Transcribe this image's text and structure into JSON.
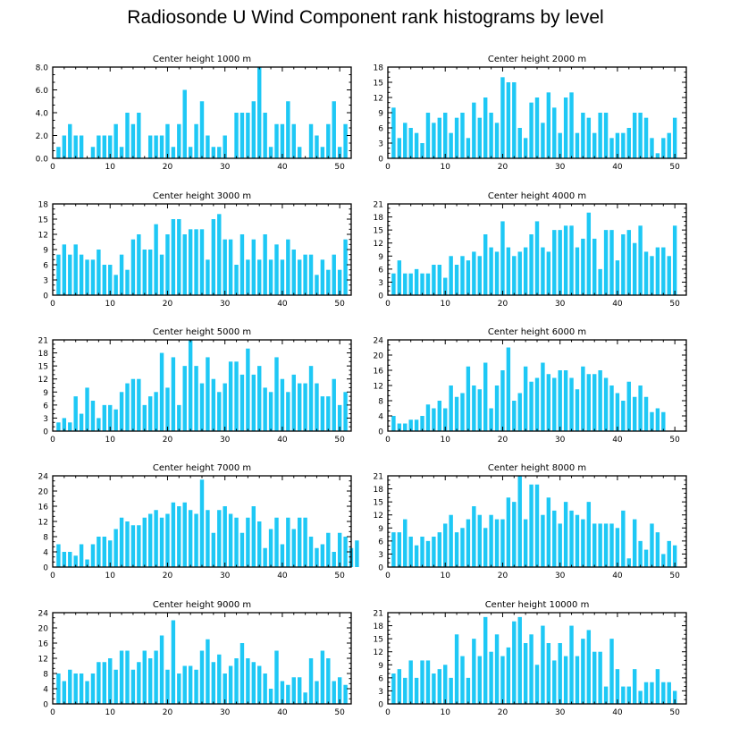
{
  "title": "Radiosonde U Wind Component rank histograms by level",
  "chart_data": [
    {
      "type": "bar",
      "title": "Center height 1000 m",
      "xlim": [
        0,
        52
      ],
      "xticks": [
        0,
        10,
        20,
        30,
        40,
        50
      ],
      "ylim": [
        0,
        8
      ],
      "yticks": [
        0,
        2,
        4,
        6,
        8
      ],
      "ytick_labels": [
        "0.0",
        "2.0",
        "4.0",
        "6.0",
        "8.0"
      ],
      "values": [
        1,
        2,
        3,
        2,
        2,
        0,
        1,
        2,
        2,
        2,
        3,
        1,
        4,
        3,
        4,
        0,
        2,
        2,
        2,
        3,
        1,
        3,
        6,
        1,
        3,
        5,
        2,
        1,
        1,
        2,
        0,
        4,
        4,
        4,
        5,
        8,
        4,
        1,
        3,
        3,
        5,
        3,
        1,
        0,
        3,
        2,
        1,
        3,
        5,
        1,
        3
      ]
    },
    {
      "type": "bar",
      "title": "Center height 2000 m",
      "xlim": [
        0,
        52
      ],
      "xticks": [
        0,
        10,
        20,
        30,
        40,
        50
      ],
      "ylim": [
        0,
        18
      ],
      "yticks": [
        0,
        3,
        6,
        9,
        12,
        15,
        18
      ],
      "ytick_labels": [
        "0",
        "3",
        "6",
        "9",
        "12",
        "15",
        "18"
      ],
      "values": [
        10,
        4,
        7,
        6,
        5,
        3,
        9,
        7,
        8,
        9,
        5,
        8,
        9,
        4,
        11,
        8,
        12,
        9,
        7,
        16,
        15,
        15,
        6,
        4,
        11,
        12,
        7,
        13,
        10,
        5,
        12,
        13,
        5,
        9,
        8,
        5,
        9,
        9,
        4,
        5,
        5,
        6,
        9,
        9,
        8,
        4,
        1,
        4,
        5,
        8
      ]
    },
    {
      "type": "bar",
      "title": "Center height 3000 m",
      "xlim": [
        0,
        52
      ],
      "xticks": [
        0,
        10,
        20,
        30,
        40,
        50
      ],
      "ylim": [
        0,
        18
      ],
      "yticks": [
        0,
        3,
        6,
        9,
        12,
        15,
        18
      ],
      "ytick_labels": [
        "0",
        "3",
        "6",
        "9",
        "12",
        "15",
        "18"
      ],
      "values": [
        8,
        10,
        8,
        10,
        8,
        7,
        7,
        9,
        6,
        6,
        4,
        8,
        5,
        11,
        12,
        9,
        9,
        14,
        8,
        12,
        15,
        15,
        12,
        13,
        13,
        13,
        7,
        15,
        16,
        11,
        11,
        6,
        12,
        7,
        11,
        7,
        12,
        7,
        10,
        7,
        11,
        9,
        7,
        8,
        8,
        4,
        7,
        5,
        8,
        5,
        11
      ]
    },
    {
      "type": "bar",
      "title": "Center height 4000 m",
      "xlim": [
        0,
        52
      ],
      "xticks": [
        0,
        10,
        20,
        30,
        40,
        50
      ],
      "ylim": [
        0,
        21
      ],
      "yticks": [
        0,
        3,
        6,
        9,
        12,
        15,
        18,
        21
      ],
      "ytick_labels": [
        "0",
        "3",
        "6",
        "9",
        "12",
        "15",
        "18",
        "21"
      ],
      "values": [
        5,
        8,
        5,
        5,
        6,
        5,
        5,
        7,
        7,
        4,
        9,
        7,
        9,
        8,
        10,
        9,
        14,
        11,
        10,
        17,
        11,
        9,
        10,
        11,
        14,
        17,
        11,
        10,
        15,
        15,
        16,
        16,
        11,
        13,
        19,
        13,
        6,
        15,
        15,
        8,
        14,
        15,
        12,
        16,
        10,
        9,
        11,
        11,
        9,
        16
      ]
    },
    {
      "type": "bar",
      "title": "Center height 5000 m",
      "xlim": [
        0,
        52
      ],
      "xticks": [
        0,
        10,
        20,
        30,
        40,
        50
      ],
      "ylim": [
        0,
        21
      ],
      "yticks": [
        0,
        3,
        6,
        9,
        12,
        15,
        18,
        21
      ],
      "ytick_labels": [
        "0",
        "3",
        "6",
        "9",
        "12",
        "15",
        "18",
        "21"
      ],
      "values": [
        2,
        3,
        2,
        8,
        4,
        10,
        7,
        3,
        6,
        6,
        5,
        9,
        11,
        12,
        12,
        6,
        8,
        9,
        18,
        10,
        17,
        6,
        15,
        21,
        15,
        11,
        17,
        12,
        9,
        11,
        16,
        16,
        13,
        19,
        13,
        15,
        10,
        9,
        17,
        12,
        9,
        13,
        11,
        11,
        15,
        11,
        8,
        8,
        12,
        6,
        9
      ]
    },
    {
      "type": "bar",
      "title": "Center height 6000 m",
      "xlim": [
        0,
        52
      ],
      "xticks": [
        0,
        10,
        20,
        30,
        40,
        50
      ],
      "ylim": [
        0,
        24
      ],
      "yticks": [
        0,
        4,
        8,
        12,
        16,
        20,
        24
      ],
      "ytick_labels": [
        "0",
        "4",
        "8",
        "12",
        "16",
        "20",
        "24"
      ],
      "values": [
        4,
        2,
        2,
        3,
        3,
        4,
        7,
        6,
        8,
        6,
        12,
        9,
        10,
        17,
        12,
        11,
        18,
        6,
        12,
        16,
        22,
        8,
        10,
        17,
        13,
        14,
        18,
        15,
        14,
        16,
        16,
        14,
        11,
        17,
        15,
        15,
        16,
        14,
        12,
        10,
        8,
        13,
        9,
        12,
        9,
        5,
        6,
        5
      ]
    },
    {
      "type": "bar",
      "title": "Center height 7000 m",
      "xlim": [
        0,
        52
      ],
      "xticks": [
        0,
        10,
        20,
        30,
        40,
        50
      ],
      "ylim": [
        0,
        24
      ],
      "yticks": [
        0,
        4,
        8,
        12,
        16,
        20,
        24
      ],
      "ytick_labels": [
        "0",
        "4",
        "8",
        "12",
        "16",
        "20",
        "24"
      ],
      "values": [
        6,
        4,
        4,
        3,
        6,
        2,
        6,
        8,
        8,
        7,
        10,
        13,
        12,
        11,
        11,
        13,
        14,
        15,
        13,
        14,
        17,
        16,
        17,
        15,
        14,
        23,
        15,
        9,
        15,
        16,
        14,
        13,
        9,
        13,
        16,
        12,
        5,
        10,
        13,
        6,
        13,
        10,
        13,
        13,
        8,
        5,
        6,
        9,
        4,
        9,
        8,
        5,
        7
      ]
    },
    {
      "type": "bar",
      "title": "Center height 8000 m",
      "xlim": [
        0,
        52
      ],
      "xticks": [
        0,
        10,
        20,
        30,
        40,
        50
      ],
      "ylim": [
        0,
        21
      ],
      "yticks": [
        0,
        3,
        6,
        9,
        12,
        15,
        18,
        21
      ],
      "ytick_labels": [
        "0",
        "3",
        "6",
        "9",
        "12",
        "15",
        "18",
        "21"
      ],
      "values": [
        8,
        8,
        11,
        7,
        5,
        7,
        6,
        7,
        8,
        10,
        12,
        8,
        9,
        11,
        14,
        12,
        9,
        12,
        11,
        11,
        16,
        15,
        21,
        11,
        19,
        19,
        12,
        16,
        13,
        10,
        15,
        13,
        12,
        11,
        15,
        10,
        10,
        10,
        10,
        9,
        13,
        2,
        11,
        6,
        4,
        10,
        8,
        3,
        6,
        5
      ]
    },
    {
      "type": "bar",
      "title": "Center height 9000 m",
      "xlim": [
        0,
        52
      ],
      "xticks": [
        0,
        10,
        20,
        30,
        40,
        50
      ],
      "ylim": [
        0,
        24
      ],
      "yticks": [
        0,
        4,
        8,
        12,
        16,
        20,
        24
      ],
      "ytick_labels": [
        "0",
        "4",
        "8",
        "12",
        "16",
        "20",
        "24"
      ],
      "values": [
        8,
        6,
        9,
        8,
        8,
        6,
        8,
        11,
        11,
        12,
        9,
        14,
        14,
        9,
        11,
        14,
        12,
        14,
        18,
        9,
        22,
        8,
        10,
        10,
        9,
        14,
        17,
        11,
        13,
        8,
        10,
        12,
        16,
        12,
        11,
        10,
        8,
        4,
        14,
        6,
        5,
        7,
        7,
        3,
        12,
        6,
        14,
        12,
        6,
        7,
        5
      ]
    },
    {
      "type": "bar",
      "title": "Center height 10000 m",
      "xlim": [
        0,
        52
      ],
      "xticks": [
        0,
        10,
        20,
        30,
        40,
        50
      ],
      "ylim": [
        0,
        21
      ],
      "yticks": [
        0,
        3,
        6,
        9,
        12,
        15,
        18,
        21
      ],
      "ytick_labels": [
        "0",
        "3",
        "6",
        "9",
        "12",
        "15",
        "18",
        "21"
      ],
      "values": [
        7,
        8,
        6,
        10,
        6,
        10,
        10,
        7,
        8,
        9,
        6,
        16,
        11,
        6,
        15,
        11,
        20,
        12,
        16,
        11,
        13,
        19,
        20,
        14,
        16,
        9,
        18,
        14,
        10,
        14,
        11,
        18,
        11,
        15,
        17,
        12,
        12,
        4,
        15,
        8,
        4,
        4,
        8,
        3,
        5,
        5,
        8,
        5,
        5,
        3
      ]
    }
  ]
}
